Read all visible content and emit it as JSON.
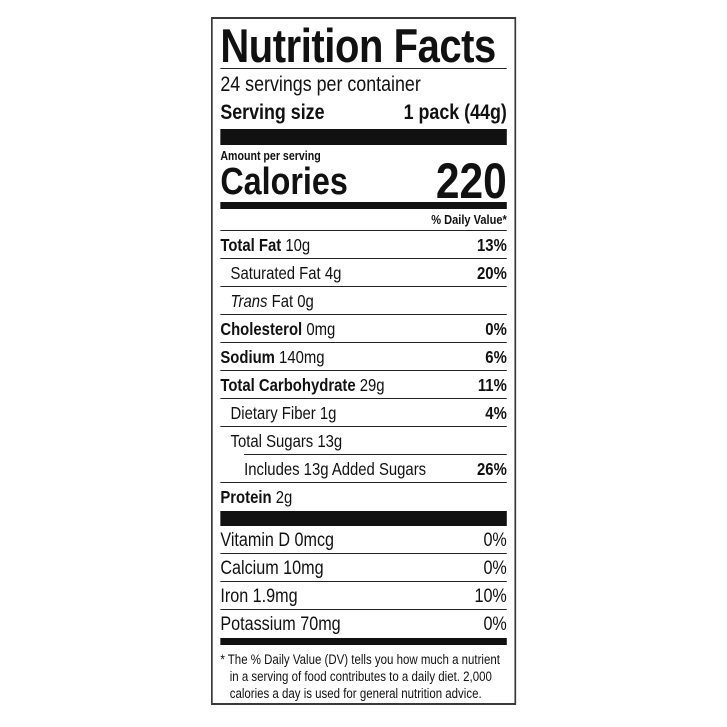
{
  "title": "Nutrition Facts",
  "servings_per_container": "24 servings per container",
  "serving_size": {
    "label": "Serving size",
    "value": "1 pack (44g)"
  },
  "amount_per_serving": "Amount per serving",
  "calories": {
    "label": "Calories",
    "value": "220"
  },
  "daily_value_header": "% Daily Value*",
  "nutrients": [
    {
      "name": "Total Fat",
      "amount": "10g",
      "dv": "13%"
    },
    {
      "name": "Saturated Fat",
      "amount": "4g",
      "dv": "20%"
    },
    {
      "name_italic": "Trans",
      "name": "Fat",
      "amount": "0g",
      "dv": ""
    },
    {
      "name": "Cholesterol",
      "amount": "0mg",
      "dv": "0%"
    },
    {
      "name": "Sodium",
      "amount": "140mg",
      "dv": "6%"
    },
    {
      "name": "Total Carbohydrate",
      "amount": "29g",
      "dv": "11%"
    },
    {
      "name": "Dietary Fiber",
      "amount": "1g",
      "dv": "4%"
    },
    {
      "name": "Total Sugars",
      "amount": "13g",
      "dv": ""
    },
    {
      "name": "Includes 13g Added Sugars",
      "amount": "",
      "dv": "26%"
    },
    {
      "name": "Protein",
      "amount": "2g",
      "dv": ""
    }
  ],
  "vitamins": [
    {
      "name": "Vitamin D 0mcg",
      "dv": "0%"
    },
    {
      "name": "Calcium 10mg",
      "dv": "0%"
    },
    {
      "name": "Iron 1.9mg",
      "dv": "10%"
    },
    {
      "name": "Potassium 70mg",
      "dv": "0%"
    }
  ],
  "footnote": "* The % Daily Value (DV) tells you how much a nutrient in a serving of food contributes to a daily diet. 2,000 calories a day is used for general nutrition advice."
}
